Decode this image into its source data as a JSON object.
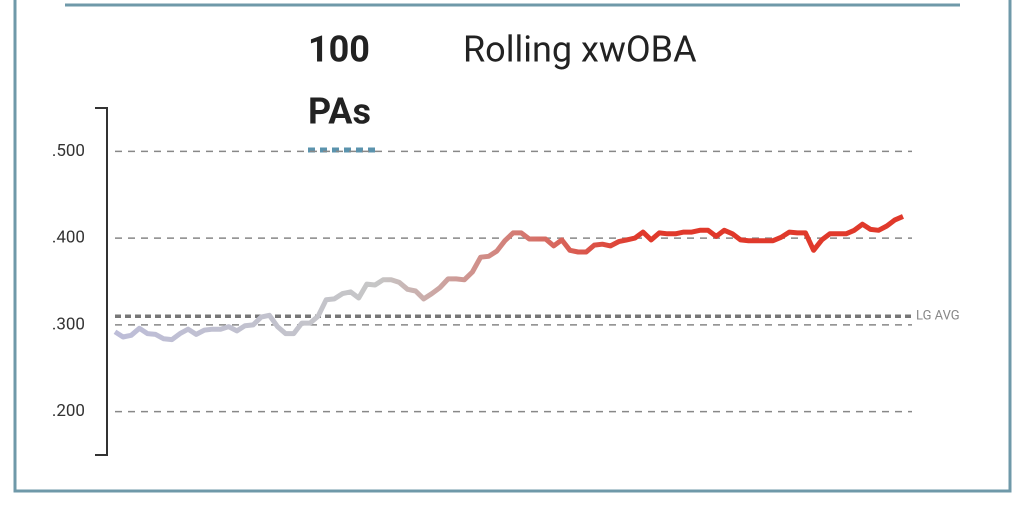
{
  "chart_data": {
    "type": "line",
    "title": "Rolling xwOBA",
    "window": {
      "value": 100,
      "unit": "PAs"
    },
    "ylim": [
      0.15,
      0.55
    ],
    "yticks": [
      {
        "value": 0.5,
        "label": ".500"
      },
      {
        "value": 0.4,
        "label": ".400"
      },
      {
        "value": 0.3,
        "label": ".300"
      },
      {
        "value": 0.2,
        "label": ".200"
      }
    ],
    "grid": true,
    "ref_line": {
      "value": 0.31,
      "label": "LG AVG"
    },
    "colors": [
      "#bdbdd8",
      "#c6c6c6",
      "#e0392b",
      "#e0392b"
    ],
    "values": [
      0.292,
      0.286,
      0.288,
      0.296,
      0.29,
      0.289,
      0.284,
      0.283,
      0.29,
      0.295,
      0.289,
      0.294,
      0.295,
      0.295,
      0.298,
      0.293,
      0.299,
      0.3,
      0.309,
      0.311,
      0.298,
      0.29,
      0.29,
      0.302,
      0.302,
      0.31,
      0.329,
      0.33,
      0.336,
      0.338,
      0.331,
      0.347,
      0.346,
      0.352,
      0.352,
      0.349,
      0.341,
      0.339,
      0.33,
      0.336,
      0.343,
      0.353,
      0.353,
      0.352,
      0.361,
      0.378,
      0.379,
      0.385,
      0.397,
      0.406,
      0.406,
      0.399,
      0.399,
      0.399,
      0.391,
      0.398,
      0.386,
      0.384,
      0.384,
      0.392,
      0.393,
      0.391,
      0.396,
      0.398,
      0.4,
      0.407,
      0.398,
      0.406,
      0.405,
      0.405,
      0.407,
      0.407,
      0.409,
      0.409,
      0.402,
      0.409,
      0.405,
      0.398,
      0.397,
      0.397,
      0.397,
      0.397,
      0.401,
      0.407,
      0.406,
      0.406,
      0.386,
      0.398,
      0.405,
      0.405,
      0.405,
      0.409,
      0.416,
      0.41,
      0.409,
      0.414,
      0.421,
      0.425
    ]
  }
}
